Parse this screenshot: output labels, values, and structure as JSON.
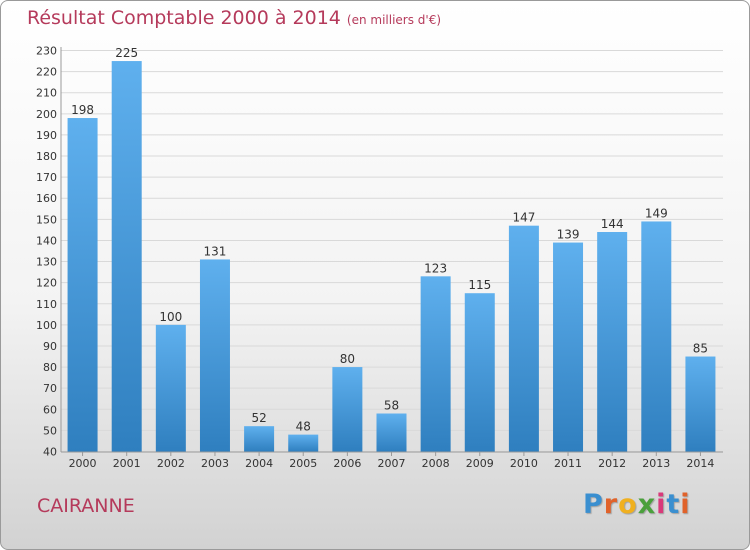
{
  "header": {
    "title": "Résultat Comptable 2000 à 2014",
    "subtitle": "(en milliers d'€)"
  },
  "footer": {
    "commune": "CAIRANNE",
    "brand": "Proxiti"
  },
  "colors": {
    "title": "#b53a5b",
    "bar_top": "#5fb0ee",
    "bar_bottom": "#2f7fbf",
    "grid": "#d9d9d9",
    "axis": "#9a9a9a"
  },
  "chart_data": {
    "type": "bar",
    "title": "Résultat Comptable 2000 à 2014",
    "subtitle": "(en milliers d'€)",
    "xlabel": "",
    "ylabel": "",
    "ylim": [
      40,
      230
    ],
    "ytick_step": 10,
    "grid": true,
    "categories": [
      "2000",
      "2001",
      "2002",
      "2003",
      "2004",
      "2005",
      "2006",
      "2007",
      "2008",
      "2009",
      "2010",
      "2011",
      "2012",
      "2013",
      "2014"
    ],
    "values": [
      198,
      225,
      100,
      131,
      52,
      48,
      80,
      58,
      123,
      115,
      147,
      139,
      144,
      149,
      85
    ]
  }
}
